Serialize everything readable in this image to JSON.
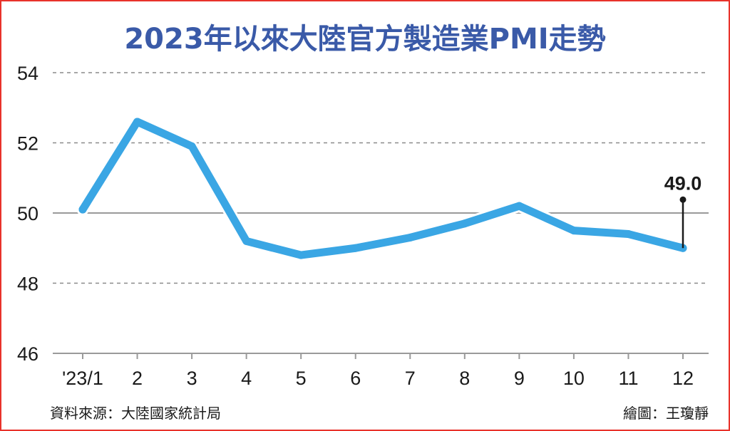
{
  "colors": {
    "border": "#e8322a",
    "title": "#3a5aa8",
    "line": "#3aa6e4",
    "gridline": "#8a8a8a",
    "text": "#1a1a1a"
  },
  "footer": {
    "source": "資料來源：大陸國家統計局",
    "credit": "繪圖：王瓊靜"
  },
  "chart_data": {
    "type": "line",
    "title": "2023年以來大陸官方製造業PMI走勢",
    "categories": [
      "'23/1",
      "2",
      "3",
      "4",
      "5",
      "6",
      "7",
      "8",
      "9",
      "10",
      "11",
      "12"
    ],
    "series": [
      {
        "values": [
          50.1,
          52.6,
          51.9,
          49.2,
          48.8,
          49.0,
          49.3,
          49.7,
          50.2,
          49.5,
          49.4,
          49.0
        ]
      }
    ],
    "ylim": [
      46,
      54
    ],
    "yticks": [
      54,
      52,
      50,
      48,
      46
    ],
    "reference_line": 50,
    "grid": "dashed horizontal",
    "legend": "none",
    "annotations": [
      {
        "category_index": 11,
        "text": "49.0"
      }
    ]
  }
}
